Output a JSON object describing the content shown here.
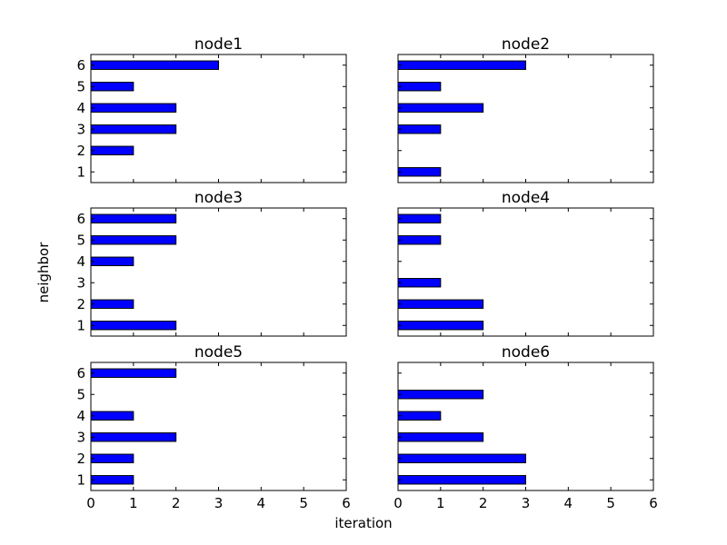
{
  "chart_data": {
    "type": "bar",
    "orientation": "horizontal",
    "layout": "3x2 grid of subplots with shared axes",
    "xlabel": "iteration",
    "ylabel": "neighbor",
    "xlim": [
      0,
      6
    ],
    "xticks": [
      "0",
      "1",
      "2",
      "3",
      "4",
      "5",
      "6"
    ],
    "ylim": [
      0.5,
      6.5
    ],
    "yticks": [
      "1",
      "2",
      "3",
      "4",
      "5",
      "6"
    ],
    "bar_color": "#0000ff",
    "edge_color": "#000000",
    "grid": false,
    "subplots": [
      {
        "title": "node1",
        "categories": [
          1,
          2,
          3,
          4,
          5,
          6
        ],
        "values": [
          0,
          1,
          2,
          2,
          1,
          3
        ]
      },
      {
        "title": "node2",
        "categories": [
          1,
          2,
          3,
          4,
          5,
          6
        ],
        "values": [
          1,
          0,
          1,
          2,
          1,
          3
        ]
      },
      {
        "title": "node3",
        "categories": [
          1,
          2,
          3,
          4,
          5,
          6
        ],
        "values": [
          2,
          1,
          0,
          1,
          2,
          2
        ]
      },
      {
        "title": "node4",
        "categories": [
          1,
          2,
          3,
          4,
          5,
          6
        ],
        "values": [
          2,
          2,
          1,
          0,
          1,
          1
        ]
      },
      {
        "title": "node5",
        "categories": [
          1,
          2,
          3,
          4,
          5,
          6
        ],
        "values": [
          1,
          1,
          2,
          1,
          0,
          2
        ]
      },
      {
        "title": "node6",
        "categories": [
          1,
          2,
          3,
          4,
          5,
          6
        ],
        "values": [
          3,
          3,
          2,
          1,
          2,
          0
        ]
      }
    ]
  }
}
